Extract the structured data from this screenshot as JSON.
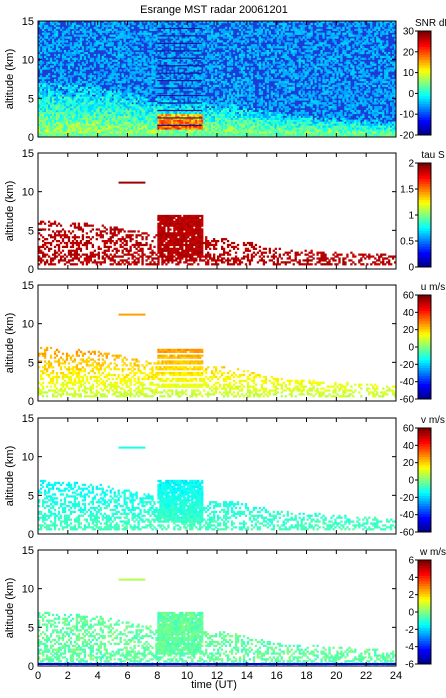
{
  "chart_data": {
    "type": "heatmap",
    "title": "Esrange MST radar 20061201",
    "xlabel": "time (UT)",
    "x_ticks": [
      "0",
      "2",
      "4",
      "6",
      "8",
      "10",
      "12",
      "14",
      "16",
      "18",
      "20",
      "22",
      "24"
    ],
    "xlim": [
      0,
      24
    ],
    "panels": [
      {
        "key": "snr",
        "ylabel": "altitude (km)",
        "ylim": [
          0,
          15
        ],
        "y_ticks": [
          "0",
          "5",
          "10",
          "15"
        ],
        "colorbar_label": "SNR dB",
        "colorbar_range": [
          -20,
          30
        ],
        "colorbar_ticks": [
          "30",
          "20",
          "10",
          "0",
          "-10",
          "-20"
        ],
        "colors": {
          "background": "#1b3cd8",
          "deep": "#0c1c9a"
        }
      },
      {
        "key": "tau",
        "ylabel": "altitude (km)",
        "ylim": [
          0,
          15
        ],
        "y_ticks": [
          "0",
          "5",
          "10",
          "15"
        ],
        "colorbar_label": "tau S",
        "colorbar_range": [
          0,
          2
        ],
        "colorbar_ticks": [
          "2",
          "1.5",
          "1",
          "0.5",
          "0"
        ],
        "colors": {
          "dominant": "#8b1a1a"
        }
      },
      {
        "key": "u",
        "ylabel": "altitude (km)",
        "ylim": [
          0,
          15
        ],
        "y_ticks": [
          "0",
          "5",
          "10",
          "15"
        ],
        "colorbar_label": "u m/s",
        "colorbar_range": [
          -60,
          60
        ],
        "colorbar_ticks": [
          "60",
          "40",
          "20",
          "0",
          "-20",
          "-40",
          "-60"
        ]
      },
      {
        "key": "v",
        "ylabel": "altitude (km)",
        "ylim": [
          0,
          15
        ],
        "y_ticks": [
          "0",
          "5",
          "10",
          "15"
        ],
        "colorbar_label": "v m/s",
        "colorbar_range": [
          -60,
          60
        ],
        "colorbar_ticks": [
          "60",
          "40",
          "20",
          "0",
          "-20",
          "-40",
          "-60"
        ]
      },
      {
        "key": "w",
        "ylabel": "altitude (km)",
        "ylim": [
          0,
          15
        ],
        "y_ticks": [
          "0",
          "5",
          "10",
          "15"
        ],
        "colorbar_label": "w m/s",
        "colorbar_range": [
          -6,
          6
        ],
        "colorbar_ticks": [
          "6",
          "4",
          "2",
          "0",
          "-2",
          "-4",
          "-6"
        ]
      }
    ],
    "colormap": [
      "#00008f",
      "#0000ff",
      "#0080ff",
      "#00ffff",
      "#80ff80",
      "#ffff00",
      "#ff8000",
      "#ff0000",
      "#800000"
    ],
    "regions": {
      "low_layer_top_km_by_hour": [
        [
          0,
          7
        ],
        [
          4,
          6.5
        ],
        [
          8,
          5
        ],
        [
          12,
          4.5
        ],
        [
          14,
          4
        ],
        [
          16,
          3
        ],
        [
          20,
          2.5
        ],
        [
          24,
          2
        ]
      ],
      "dense_block_hours": [
        8,
        11
      ],
      "dense_block_alt_km": [
        1.5,
        7
      ]
    }
  }
}
